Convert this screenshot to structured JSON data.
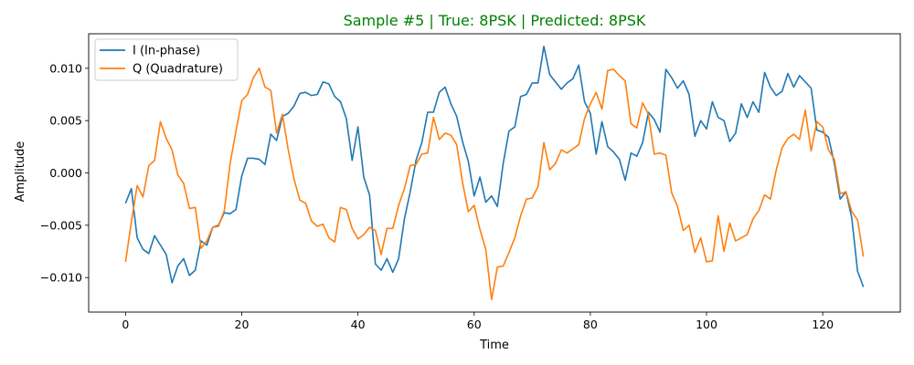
{
  "chart_data": {
    "type": "line",
    "title": "Sample #5 | True: 8PSK | Predicted: 8PSK",
    "title_color": "#008000",
    "xlabel": "Time",
    "ylabel": "Amplitude",
    "xlim": [
      -6.35,
      133.35
    ],
    "ylim": [
      -0.0133,
      0.0133
    ],
    "xticks": [
      0,
      20,
      40,
      60,
      80,
      100,
      120
    ],
    "yticks": [
      -0.01,
      -0.005,
      0.0,
      0.005,
      0.01
    ],
    "xtick_labels": [
      "0",
      "20",
      "40",
      "60",
      "80",
      "100",
      "120"
    ],
    "ytick_labels": [
      "−0.010",
      "−0.005",
      "0.000",
      "0.005",
      "0.010"
    ],
    "grid": false,
    "legend_position": "upper-left",
    "series": [
      {
        "name": "I (In-phase)",
        "color": "#1f77b4",
        "values": [
          -0.0029,
          -0.0015,
          -0.0062,
          -0.0073,
          -0.0077,
          -0.006,
          -0.0069,
          -0.0078,
          -0.0105,
          -0.0089,
          -0.0082,
          -0.0098,
          -0.0093,
          -0.0065,
          -0.0069,
          -0.0052,
          -0.005,
          -0.0038,
          -0.0039,
          -0.0035,
          -0.0003,
          0.0014,
          0.0014,
          0.0013,
          0.0008,
          0.0037,
          0.0031,
          0.0054,
          0.0057,
          0.0064,
          0.0076,
          0.0077,
          0.0074,
          0.0075,
          0.0087,
          0.0085,
          0.0073,
          0.0068,
          0.0052,
          0.0012,
          0.0044,
          -0.0004,
          -0.0021,
          -0.0087,
          -0.0093,
          -0.0082,
          -0.0095,
          -0.0082,
          -0.0044,
          -0.0018,
          0.0012,
          0.0029,
          0.0058,
          0.0058,
          0.0077,
          0.0082,
          0.0066,
          0.0054,
          0.003,
          0.0011,
          -0.0022,
          -0.0004,
          -0.0028,
          -0.0022,
          -0.0032,
          0.0009,
          0.004,
          0.0044,
          0.0073,
          0.0075,
          0.0086,
          0.0086,
          0.0121,
          0.0094,
          0.0087,
          0.008,
          0.0086,
          0.009,
          0.0103,
          0.0068,
          0.0057,
          0.0018,
          0.0049,
          0.0025,
          0.002,
          0.0013,
          -0.0007,
          0.0019,
          0.0016,
          0.0029,
          0.0058,
          0.0051,
          0.0039,
          0.0099,
          0.0091,
          0.0081,
          0.0088,
          0.0075,
          0.0035,
          0.005,
          0.0042,
          0.0068,
          0.0053,
          0.005,
          0.003,
          0.0038,
          0.0066,
          0.0053,
          0.0068,
          0.0058,
          0.0096,
          0.0082,
          0.0074,
          0.0078,
          0.0095,
          0.0082,
          0.0093,
          0.0087,
          0.0081,
          0.0041,
          0.0039,
          0.0034,
          0.0009,
          -0.0025,
          -0.0018,
          -0.0043,
          -0.0094,
          -0.0109
        ]
      },
      {
        "name": "Q (Quadrature)",
        "color": "#ff7f0e",
        "values": [
          -0.0085,
          -0.0047,
          -0.0012,
          -0.0023,
          0.0007,
          0.0012,
          0.0049,
          0.0033,
          0.0022,
          -0.0002,
          -0.001,
          -0.0034,
          -0.0033,
          -0.0072,
          -0.0065,
          -0.0052,
          -0.0051,
          -0.0036,
          0.0009,
          0.004,
          0.0069,
          0.0075,
          0.0091,
          0.01,
          0.0082,
          0.0079,
          0.0038,
          0.0056,
          0.0022,
          -0.0006,
          -0.0026,
          -0.0029,
          -0.0046,
          -0.0051,
          -0.0049,
          -0.0062,
          -0.0066,
          -0.0033,
          -0.0035,
          -0.0053,
          -0.0063,
          -0.0059,
          -0.0052,
          -0.0055,
          -0.0078,
          -0.0053,
          -0.0053,
          -0.0031,
          -0.0015,
          0.0007,
          0.0008,
          0.0018,
          0.0019,
          0.0053,
          0.0032,
          0.0038,
          0.0036,
          0.0027,
          -0.0009,
          -0.0037,
          -0.0031,
          -0.0054,
          -0.0073,
          -0.0121,
          -0.009,
          -0.0089,
          -0.0076,
          -0.0062,
          -0.0041,
          -0.0025,
          -0.0024,
          -0.0013,
          0.0029,
          0.0003,
          0.0009,
          0.0022,
          0.0019,
          0.0023,
          0.0027,
          0.0052,
          0.0066,
          0.0077,
          0.0061,
          0.0098,
          0.0099,
          0.0093,
          0.0088,
          0.0047,
          0.0043,
          0.0067,
          0.0056,
          0.0018,
          0.0019,
          0.0017,
          -0.0019,
          -0.0032,
          -0.0055,
          -0.005,
          -0.0076,
          -0.0062,
          -0.0085,
          -0.0084,
          -0.0041,
          -0.0075,
          -0.0048,
          -0.0065,
          -0.0062,
          -0.0059,
          -0.0044,
          -0.0036,
          -0.0021,
          -0.0025,
          0.0003,
          0.0024,
          0.0033,
          0.0037,
          0.0032,
          0.006,
          0.0021,
          0.0049,
          0.0044,
          0.0022,
          0.0013,
          -0.002,
          -0.0018,
          -0.0037,
          -0.0045,
          -0.008
        ]
      }
    ]
  }
}
